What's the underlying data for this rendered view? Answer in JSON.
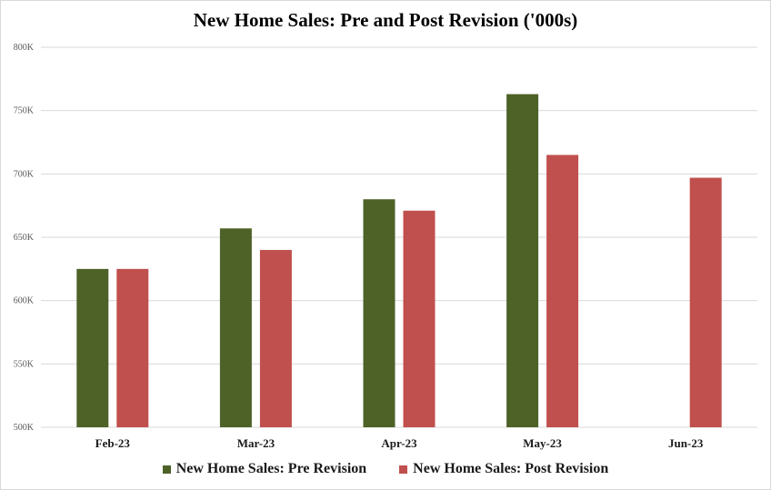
{
  "chart_data": {
    "type": "bar",
    "title": "New Home Sales: Pre and Post Revision ('000s)",
    "categories": [
      "Feb-23",
      "Mar-23",
      "Apr-23",
      "May-23",
      "Jun-23"
    ],
    "series": [
      {
        "name": "New Home Sales: Pre Revision",
        "color": "#4e6228",
        "values": [
          625,
          657,
          680,
          763,
          null
        ]
      },
      {
        "name": "New Home Sales: Post Revision",
        "color": "#c0504d",
        "values": [
          625,
          640,
          671,
          715,
          697
        ]
      }
    ],
    "ylim": [
      500,
      800
    ],
    "yticks": [
      500,
      550,
      600,
      650,
      700,
      750,
      800
    ],
    "ytick_labels": [
      "500K",
      "550K",
      "600K",
      "650K",
      "700K",
      "750K",
      "800K"
    ],
    "grid": true,
    "legend_position": "bottom"
  }
}
